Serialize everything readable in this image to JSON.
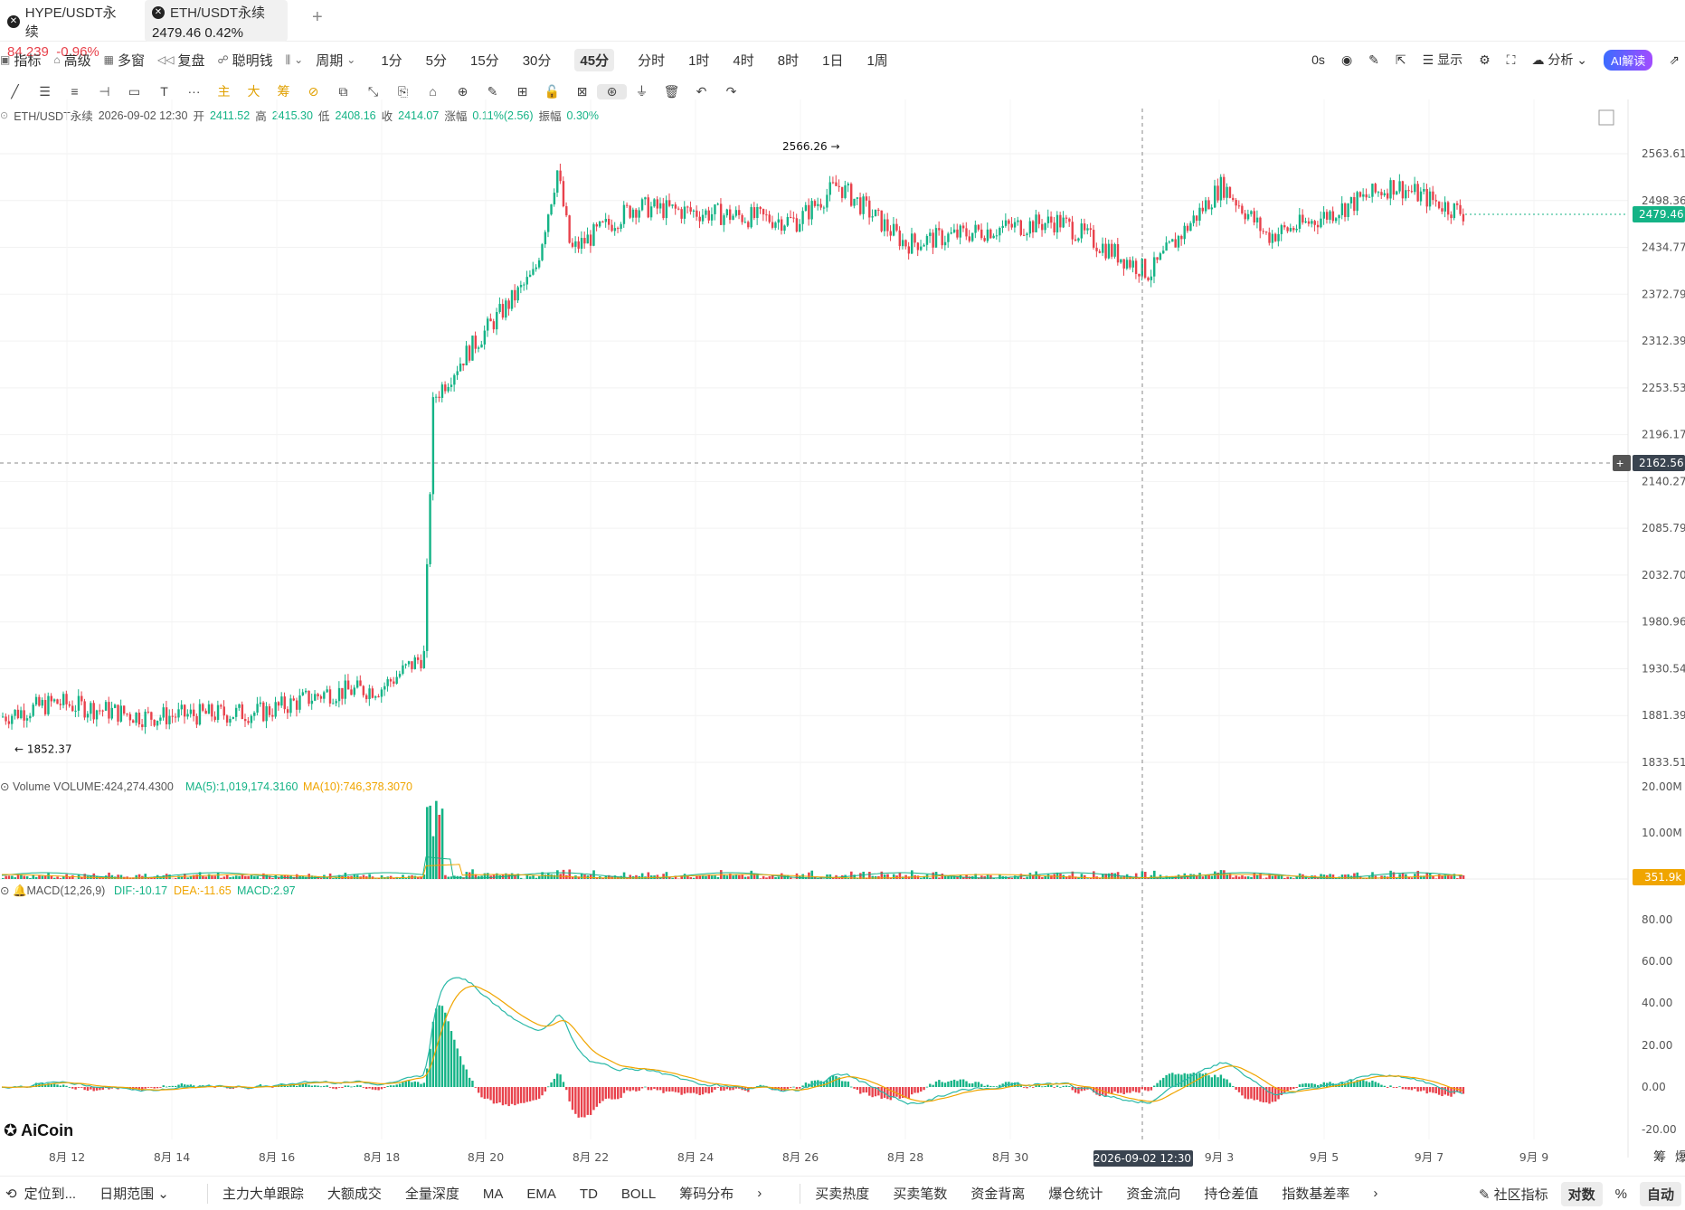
{
  "tabs": [
    {
      "name": "HYPE/USDT永续",
      "price": "84.239",
      "change": "-0.96%"
    },
    {
      "name": "ETH/USDT永续",
      "price": "2479.46",
      "change": "0.42%"
    }
  ],
  "toolbar": {
    "indicators": "指标",
    "advanced": "高级",
    "multi_window": "多窗",
    "replay": "复盘",
    "smart_money": "聪明钱",
    "cycle": "周期",
    "periods": [
      "1分",
      "5分",
      "15分",
      "30分",
      "45分",
      "分时",
      "1时",
      "4时",
      "8时",
      "1日",
      "1周"
    ],
    "active_period": "45分",
    "latency": "0s",
    "display": "显示",
    "analysis": "分析",
    "ai_button": "AI解读"
  },
  "drawing_tools": [
    "╱",
    "☰",
    "≡",
    "⊣",
    "▭",
    "T",
    "···",
    "主",
    "大",
    "筹",
    "⊘",
    "⧉",
    "⤡",
    "⎘",
    "⌂",
    "⊕",
    "✎",
    "⊞",
    "🔓",
    "⊠",
    "⊛",
    "⏚",
    "🗑",
    "↶",
    "↷"
  ],
  "ohlc": {
    "symbol": "ETH/USDT永续",
    "time": "2026-09-02 12:30",
    "open_label": "开",
    "open": "2411.52",
    "high_label": "高",
    "high": "2415.30",
    "low_label": "低",
    "low": "2408.16",
    "close_label": "收",
    "close": "2414.07",
    "change_label": "涨幅",
    "change": "0.11%(2.56)",
    "amplitude_label": "振幅",
    "amplitude": "0.30%"
  },
  "price_axis": [
    "2563.61",
    "2498.36",
    "2434.77",
    "2372.79",
    "2312.39",
    "2253.53",
    "2196.17",
    "2140.27",
    "2085.79",
    "2032.70",
    "1980.96",
    "1930.54",
    "1881.39",
    "1833.51"
  ],
  "current_price": "2479.46",
  "crosshair_price": "2162.56",
  "crosshair_time": "2026-09-02 12:30",
  "high_marker": "2566.26",
  "low_marker": "1852.37",
  "volume": {
    "label": "Volume",
    "value": "VOLUME:424,274.4300",
    "ma5": "MA(5):1,019,174.3160",
    "ma10": "MA(10):746,378.3070",
    "axis": [
      "20.00M",
      "10.00M"
    ],
    "current": "351.9k"
  },
  "macd": {
    "label": "MACD(12,26,9)",
    "dif": "DIF:-10.17",
    "dea": "DEA:-11.65",
    "macd": "MACD:2.97",
    "axis": [
      "80.00",
      "60.00",
      "40.00",
      "20.00",
      "0.00",
      "-20.00"
    ]
  },
  "chart_data": {
    "type": "candlestick",
    "price_range": [
      1833.51,
      2566.26
    ],
    "x_ticks": [
      "8月 12",
      "8月 14",
      "8月 16",
      "8月 18",
      "8月 20",
      "8月 22",
      "8月 24",
      "8月 26",
      "8月 28",
      "8月 30",
      "9月 3",
      "9月 5",
      "9月 7",
      "9月 9"
    ],
    "approx_close_path": [
      {
        "date": "8月 11",
        "price": 1880
      },
      {
        "date": "8月 12",
        "price": 1895
      },
      {
        "date": "8月 14",
        "price": 1880
      },
      {
        "date": "8月 16",
        "price": 1885
      },
      {
        "date": "8月 17",
        "price": 1905
      },
      {
        "date": "8月 18",
        "price": 1910
      },
      {
        "date": "8月 19",
        "price": 1945
      },
      {
        "date": "8月 19",
        "price": 2240
      },
      {
        "date": "8月 20",
        "price": 2290
      },
      {
        "date": "8月 21",
        "price": 2400
      },
      {
        "date": "8月 21",
        "price": 2540
      },
      {
        "date": "8月 22",
        "price": 2430
      },
      {
        "date": "8月 24",
        "price": 2490
      },
      {
        "date": "8月 26",
        "price": 2470
      },
      {
        "date": "8月 27",
        "price": 2520
      },
      {
        "date": "8月 28",
        "price": 2440
      },
      {
        "date": "8月 30",
        "price": 2460
      },
      {
        "date": "8月 31",
        "price": 2470
      },
      {
        "date": "9月 2",
        "price": 2400
      },
      {
        "date": "9月 3",
        "price": 2520
      },
      {
        "date": "9月 4",
        "price": 2450
      },
      {
        "date": "9月 5",
        "price": 2470
      },
      {
        "date": "9月 6",
        "price": 2520
      },
      {
        "date": "9月 7",
        "price": 2479.46
      }
    ]
  },
  "watermark": "AiCoin",
  "bottom": {
    "locate": "定位到...",
    "date_range": "日期范围",
    "items_left": [
      "主力大单跟踪",
      "大额成交",
      "全量深度",
      "MA",
      "EMA",
      "TD",
      "BOLL",
      "筹码分布"
    ],
    "items_right": [
      "买卖热度",
      "买卖笔数",
      "资金背离",
      "爆仓统计",
      "资金流向",
      "持仓差值",
      "指数基差率"
    ],
    "community": "社区指标",
    "log": "对数",
    "percent": "%",
    "auto": "自动"
  },
  "side_labels": [
    "筹",
    "爆"
  ],
  "colors": {
    "up": "#14b386",
    "down": "#e8414b",
    "ma_yellow": "#f0a500",
    "accent": "#3b6cff"
  }
}
